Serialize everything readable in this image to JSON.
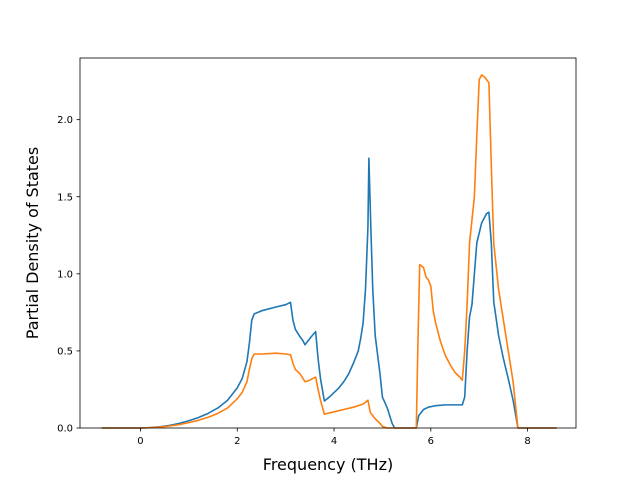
{
  "chart_data": {
    "type": "line",
    "title": "",
    "xlabel": "Frequency (THz)",
    "ylabel": "Partial Density of States",
    "xlim": [
      -1.25,
      9.0
    ],
    "ylim": [
      0.0,
      2.4
    ],
    "xticks": [
      0,
      2,
      4,
      6,
      8
    ],
    "xtick_labels": [
      "0",
      "2",
      "4",
      "6",
      "8"
    ],
    "yticks": [
      0.0,
      0.5,
      1.0,
      1.5,
      2.0
    ],
    "ytick_labels": [
      "0.0",
      "0.5",
      "1.0",
      "1.5",
      "2.0"
    ],
    "grid": false,
    "legend": "none",
    "series": [
      {
        "color": "#1f77b4",
        "points": [
          [
            -0.8,
            0.0
          ],
          [
            0.0,
            0.0
          ],
          [
            0.2,
            0.003
          ],
          [
            0.4,
            0.008
          ],
          [
            0.6,
            0.017
          ],
          [
            0.8,
            0.03
          ],
          [
            1.0,
            0.047
          ],
          [
            1.2,
            0.068
          ],
          [
            1.4,
            0.095
          ],
          [
            1.6,
            0.13
          ],
          [
            1.8,
            0.18
          ],
          [
            2.0,
            0.26
          ],
          [
            2.1,
            0.32
          ],
          [
            2.2,
            0.43
          ],
          [
            2.25,
            0.55
          ],
          [
            2.3,
            0.7
          ],
          [
            2.35,
            0.74
          ],
          [
            2.5,
            0.76
          ],
          [
            2.8,
            0.785
          ],
          [
            3.0,
            0.8
          ],
          [
            3.1,
            0.815
          ],
          [
            3.15,
            0.7
          ],
          [
            3.2,
            0.64
          ],
          [
            3.3,
            0.59
          ],
          [
            3.35,
            0.57
          ],
          [
            3.4,
            0.54
          ],
          [
            3.45,
            0.56
          ],
          [
            3.55,
            0.6
          ],
          [
            3.62,
            0.625
          ],
          [
            3.67,
            0.45
          ],
          [
            3.72,
            0.32
          ],
          [
            3.8,
            0.175
          ],
          [
            3.9,
            0.2
          ],
          [
            4.0,
            0.23
          ],
          [
            4.1,
            0.26
          ],
          [
            4.2,
            0.3
          ],
          [
            4.3,
            0.35
          ],
          [
            4.4,
            0.42
          ],
          [
            4.5,
            0.5
          ],
          [
            4.55,
            0.58
          ],
          [
            4.6,
            0.68
          ],
          [
            4.65,
            0.9
          ],
          [
            4.7,
            1.3
          ],
          [
            4.72,
            1.75
          ],
          [
            4.76,
            1.3
          ],
          [
            4.8,
            0.9
          ],
          [
            4.85,
            0.6
          ],
          [
            4.95,
            0.35
          ],
          [
            5.0,
            0.2
          ],
          [
            5.1,
            0.13
          ],
          [
            5.2,
            0.03
          ],
          [
            5.25,
            0.0
          ],
          [
            5.7,
            0.0
          ],
          [
            5.75,
            0.08
          ],
          [
            5.85,
            0.12
          ],
          [
            5.95,
            0.135
          ],
          [
            6.1,
            0.145
          ],
          [
            6.3,
            0.15
          ],
          [
            6.5,
            0.15
          ],
          [
            6.65,
            0.15
          ],
          [
            6.7,
            0.2
          ],
          [
            6.75,
            0.5
          ],
          [
            6.8,
            0.72
          ],
          [
            6.85,
            0.8
          ],
          [
            6.9,
            1.0
          ],
          [
            6.95,
            1.2
          ],
          [
            7.05,
            1.33
          ],
          [
            7.15,
            1.39
          ],
          [
            7.2,
            1.4
          ],
          [
            7.25,
            1.2
          ],
          [
            7.3,
            0.82
          ],
          [
            7.4,
            0.6
          ],
          [
            7.5,
            0.45
          ],
          [
            7.6,
            0.32
          ],
          [
            7.7,
            0.18
          ],
          [
            7.8,
            0.0
          ],
          [
            8.6,
            0.0
          ]
        ]
      },
      {
        "color": "#ff7f0e",
        "points": [
          [
            -0.8,
            0.0
          ],
          [
            0.0,
            0.0
          ],
          [
            0.2,
            0.002
          ],
          [
            0.4,
            0.006
          ],
          [
            0.6,
            0.013
          ],
          [
            0.8,
            0.022
          ],
          [
            1.0,
            0.035
          ],
          [
            1.2,
            0.05
          ],
          [
            1.4,
            0.07
          ],
          [
            1.6,
            0.095
          ],
          [
            1.8,
            0.13
          ],
          [
            2.0,
            0.19
          ],
          [
            2.1,
            0.23
          ],
          [
            2.2,
            0.3
          ],
          [
            2.25,
            0.38
          ],
          [
            2.3,
            0.45
          ],
          [
            2.35,
            0.48
          ],
          [
            2.5,
            0.48
          ],
          [
            2.8,
            0.485
          ],
          [
            3.0,
            0.48
          ],
          [
            3.1,
            0.475
          ],
          [
            3.15,
            0.42
          ],
          [
            3.2,
            0.38
          ],
          [
            3.3,
            0.35
          ],
          [
            3.4,
            0.3
          ],
          [
            3.5,
            0.31
          ],
          [
            3.55,
            0.32
          ],
          [
            3.62,
            0.33
          ],
          [
            3.67,
            0.25
          ],
          [
            3.72,
            0.18
          ],
          [
            3.8,
            0.09
          ],
          [
            4.0,
            0.105
          ],
          [
            4.2,
            0.12
          ],
          [
            4.4,
            0.135
          ],
          [
            4.6,
            0.155
          ],
          [
            4.7,
            0.18
          ],
          [
            4.75,
            0.1
          ],
          [
            4.85,
            0.06
          ],
          [
            4.95,
            0.03
          ],
          [
            5.0,
            0.01
          ],
          [
            5.1,
            0.0
          ],
          [
            5.7,
            0.0
          ],
          [
            5.73,
            0.5
          ],
          [
            5.77,
            1.06
          ],
          [
            5.85,
            1.04
          ],
          [
            5.9,
            0.98
          ],
          [
            5.95,
            0.96
          ],
          [
            6.0,
            0.92
          ],
          [
            6.05,
            0.76
          ],
          [
            6.1,
            0.68
          ],
          [
            6.2,
            0.56
          ],
          [
            6.3,
            0.47
          ],
          [
            6.4,
            0.41
          ],
          [
            6.5,
            0.36
          ],
          [
            6.6,
            0.33
          ],
          [
            6.65,
            0.31
          ],
          [
            6.7,
            0.5
          ],
          [
            6.75,
            0.8
          ],
          [
            6.8,
            1.2
          ],
          [
            6.9,
            1.5
          ],
          [
            6.95,
            1.9
          ],
          [
            7.0,
            2.26
          ],
          [
            7.05,
            2.29
          ],
          [
            7.1,
            2.28
          ],
          [
            7.2,
            2.24
          ],
          [
            7.25,
            1.7
          ],
          [
            7.3,
            1.2
          ],
          [
            7.4,
            0.9
          ],
          [
            7.5,
            0.7
          ],
          [
            7.6,
            0.5
          ],
          [
            7.7,
            0.3
          ],
          [
            7.75,
            0.15
          ],
          [
            7.8,
            0.0
          ],
          [
            8.6,
            0.0
          ]
        ]
      }
    ]
  }
}
